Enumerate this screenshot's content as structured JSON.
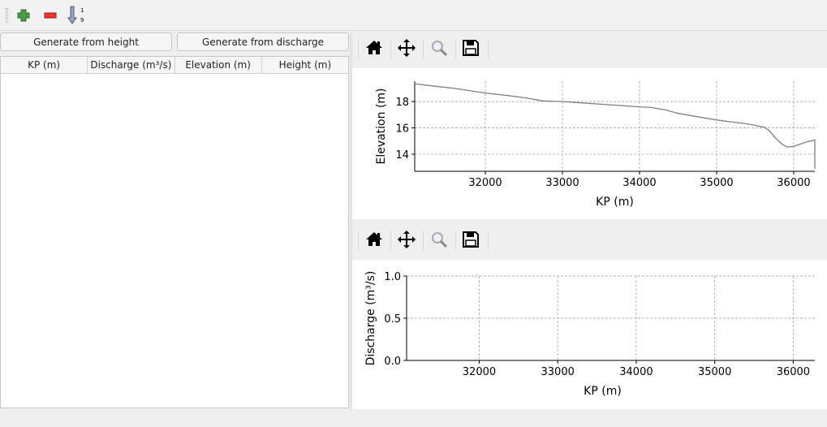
{
  "toolbar": {
    "icons": [
      "add-icon",
      "remove-icon",
      "sort-ascending-icon"
    ],
    "sort_digits": [
      "1",
      "9"
    ]
  },
  "buttons": {
    "generate_height": "Generate from height",
    "generate_discharge": "Generate from discharge"
  },
  "table": {
    "columns": [
      "KP (m)",
      "Discharge (m³/s)",
      "Elevation (m)",
      "Height (m)"
    ],
    "rows": []
  },
  "plot_toolbar": {
    "icons": [
      "home-icon",
      "pan-icon",
      "zoom-icon",
      "save-icon"
    ]
  },
  "chart_data": [
    {
      "type": "line",
      "xlabel": "KP (m)",
      "ylabel": "Elevation (m)",
      "xlim": [
        31084,
        36274
      ],
      "ylim": [
        12.7,
        19.55
      ],
      "xticks": [
        32000,
        33000,
        34000,
        35000,
        36000
      ],
      "yticks": [
        14,
        16,
        18
      ],
      "grid": true,
      "line_color": "#808080",
      "x": [
        31084,
        31300,
        31600,
        32000,
        32300,
        32500,
        32750,
        33000,
        33300,
        33500,
        34000,
        34150,
        34300,
        34350,
        34500,
        34700,
        35000,
        35200,
        35400,
        35620,
        35680,
        35760,
        35850,
        35920,
        36000,
        36100,
        36200,
        36274,
        36274
      ],
      "y": [
        19.35,
        19.2,
        19.0,
        18.65,
        18.45,
        18.3,
        18.05,
        18.0,
        17.88,
        17.8,
        17.6,
        17.55,
        17.4,
        17.35,
        17.1,
        16.9,
        16.6,
        16.45,
        16.3,
        16.05,
        15.8,
        15.25,
        14.75,
        14.55,
        14.6,
        14.8,
        14.98,
        15.08,
        12.9
      ]
    },
    {
      "type": "line",
      "xlabel": "KP (m)",
      "ylabel": "Discharge (m³/s)",
      "xlim": [
        31075,
        36275
      ],
      "ylim": [
        0.0,
        1.0
      ],
      "xticks": [
        32000,
        33000,
        34000,
        35000,
        36000
      ],
      "yticks": [
        "0.0",
        "0.5",
        "1.0"
      ],
      "grid": true,
      "x": [],
      "y": []
    }
  ]
}
